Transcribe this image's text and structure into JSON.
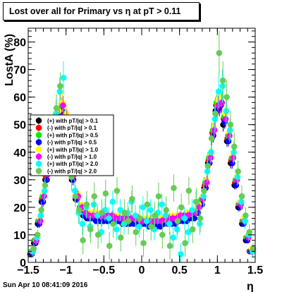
{
  "title": "Lost over all for Primary vs   η at pT > 0.11",
  "footer_timestamp": "Sun Apr 10 08:41:09 2016",
  "chart_data": {
    "type": "scatter",
    "title": "Lost over all for Primary vs   η at pT > 0.11",
    "xlabel": "η",
    "ylabel": "LostA (%)",
    "xlim": [
      -1.5,
      1.5
    ],
    "ylim": [
      0,
      85
    ],
    "x_ticks": [
      -1.5,
      -1,
      -0.5,
      0,
      0.5,
      1,
      1.5
    ],
    "x_tick_labels": [
      "−1.5",
      "−1",
      "−0.5",
      "0",
      "0.5",
      "1",
      "1.5"
    ],
    "y_ticks": [
      0,
      10,
      20,
      30,
      40,
      50,
      60,
      70,
      80
    ],
    "y_tick_labels": [
      "0",
      "10",
      "20",
      "30",
      "40",
      "50",
      "60",
      "70",
      "80"
    ],
    "grid": false,
    "legend_position": "left",
    "x": [
      -1.45,
      -1.4,
      -1.35,
      -1.3,
      -1.25,
      -1.2,
      -1.15,
      -1.1,
      -1.05,
      -1.0,
      -0.95,
      -0.9,
      -0.85,
      -0.8,
      -0.75,
      -0.7,
      -0.65,
      -0.6,
      -0.55,
      -0.5,
      -0.45,
      -0.4,
      -0.35,
      -0.3,
      -0.25,
      -0.2,
      -0.15,
      -0.1,
      -0.05,
      0.0,
      0.05,
      0.1,
      0.15,
      0.2,
      0.25,
      0.3,
      0.35,
      0.4,
      0.45,
      0.5,
      0.55,
      0.6,
      0.65,
      0.7,
      0.75,
      0.8,
      0.85,
      0.9,
      0.95,
      1.0,
      1.05,
      1.1,
      1.15,
      1.2,
      1.25,
      1.3,
      1.35,
      1.4,
      1.45
    ],
    "series": [
      {
        "name": "(+) with pT/|q| > 0.1",
        "color": "#000000",
        "values": [
          3,
          7,
          14,
          22,
          30,
          38,
          45,
          50,
          55,
          50,
          40,
          30,
          23,
          19,
          17,
          16,
          16,
          16,
          16,
          16,
          16,
          16,
          16,
          15,
          15,
          15,
          15,
          15,
          15,
          14,
          14,
          14,
          14,
          14,
          14,
          14,
          15,
          15,
          15,
          15,
          16,
          16,
          16,
          17,
          18,
          21,
          27,
          36,
          45,
          55,
          56,
          50,
          44,
          36,
          28,
          20,
          14,
          8,
          4
        ],
        "err": [
          1,
          1,
          1.5,
          2,
          2,
          2,
          2.5,
          2.5,
          3,
          3,
          2.5,
          2,
          1.5,
          1,
          1,
          1,
          1,
          1,
          1,
          1,
          1,
          1,
          1,
          1,
          1,
          1,
          1,
          1,
          1,
          1,
          1,
          1,
          1,
          1,
          1,
          1,
          1,
          1,
          1,
          1,
          1,
          1,
          1,
          1,
          1,
          1.5,
          2,
          2,
          2.5,
          3,
          3,
          2.5,
          2,
          2,
          1.5,
          1.5,
          1,
          1,
          1
        ]
      },
      {
        "name": "(-) with pT/|q| > 0.1",
        "color": "#ff0000",
        "values": [
          3,
          8,
          15,
          23,
          31,
          40,
          47,
          52,
          56,
          52,
          42,
          31,
          24,
          20,
          18,
          17,
          17,
          17,
          16,
          16,
          16,
          16,
          16,
          16,
          15,
          15,
          15,
          15,
          15,
          15,
          15,
          15,
          15,
          15,
          15,
          15,
          15,
          15,
          16,
          16,
          16,
          17,
          17,
          18,
          19,
          22,
          28,
          37,
          47,
          57,
          58,
          52,
          45,
          37,
          29,
          21,
          15,
          9,
          4
        ],
        "err": [
          1,
          1,
          1.5,
          2,
          2,
          2,
          2.5,
          2.5,
          3,
          3,
          2.5,
          2,
          1.5,
          1,
          1,
          1,
          1,
          1,
          1,
          1,
          1,
          1,
          1,
          1,
          1,
          1,
          1,
          1,
          1,
          1,
          1,
          1,
          1,
          1,
          1,
          1,
          1,
          1,
          1,
          1,
          1,
          1,
          1,
          1,
          1,
          1.5,
          2,
          2,
          2.5,
          3,
          3,
          2.5,
          2,
          2,
          1.5,
          1.5,
          1,
          1,
          1
        ]
      },
      {
        "name": "(+) with pT/|q| > 0.5",
        "color": "#00ee00",
        "values": [
          4,
          8,
          15,
          24,
          33,
          41,
          48,
          53,
          57,
          53,
          43,
          32,
          24,
          20,
          18,
          17,
          17,
          17,
          17,
          17,
          16,
          16,
          16,
          16,
          16,
          16,
          15,
          15,
          15,
          15,
          15,
          15,
          15,
          15,
          15,
          16,
          16,
          16,
          16,
          16,
          17,
          17,
          18,
          18,
          20,
          23,
          29,
          38,
          48,
          58,
          59,
          53,
          46,
          38,
          30,
          21,
          15,
          9,
          4
        ],
        "err": [
          1,
          1,
          1.5,
          2,
          2,
          2,
          2.5,
          2.5,
          3,
          3,
          2.5,
          2,
          1.5,
          1,
          1,
          1,
          1,
          1,
          1,
          1,
          1,
          1,
          1,
          1,
          1,
          1,
          1,
          1,
          1,
          1,
          1,
          1,
          1,
          1,
          1,
          1,
          1,
          1,
          1,
          1,
          1,
          1,
          1,
          1,
          1,
          1.5,
          2,
          2,
          2.5,
          3,
          3,
          2.5,
          2,
          2,
          1.5,
          1.5,
          1,
          1,
          1
        ]
      },
      {
        "name": "(-) with pT/|q| > 0.5",
        "color": "#0000ff",
        "values": [
          3,
          7,
          14,
          22,
          30,
          39,
          46,
          51,
          55,
          51,
          41,
          30,
          23,
          19,
          17,
          16,
          16,
          15,
          15,
          15,
          15,
          15,
          15,
          15,
          14,
          14,
          14,
          14,
          14,
          14,
          14,
          13,
          13,
          13,
          13,
          14,
          14,
          14,
          14,
          15,
          15,
          15,
          16,
          16,
          18,
          21,
          27,
          36,
          46,
          55,
          57,
          51,
          44,
          36,
          28,
          20,
          14,
          8,
          4
        ],
        "err": [
          1,
          1,
          1.5,
          2,
          2,
          2,
          2.5,
          2.5,
          3,
          3,
          2.5,
          2,
          1.5,
          1,
          1,
          1,
          1,
          1,
          1,
          1,
          1,
          1,
          1,
          1,
          1,
          1,
          1,
          1,
          1,
          1,
          1,
          1,
          1,
          1,
          1,
          1,
          1,
          1,
          1,
          1,
          1,
          1,
          1,
          1,
          1,
          1.5,
          2,
          2,
          2.5,
          3,
          3,
          2.5,
          2,
          2,
          1.5,
          1.5,
          1,
          1,
          1
        ]
      },
      {
        "name": "(+) with pT/|q| > 1.0",
        "color": "#ffff00",
        "values": [
          4,
          8,
          16,
          25,
          34,
          42,
          49,
          55,
          58,
          54,
          44,
          33,
          25,
          21,
          19,
          18,
          18,
          18,
          17,
          17,
          17,
          17,
          17,
          17,
          16,
          16,
          16,
          16,
          16,
          16,
          16,
          16,
          16,
          16,
          16,
          16,
          16,
          17,
          17,
          17,
          17,
          18,
          18,
          19,
          21,
          24,
          30,
          39,
          49,
          59,
          60,
          54,
          47,
          39,
          31,
          22,
          16,
          10,
          5
        ],
        "err": [
          1.5,
          1.5,
          2,
          2.5,
          2.5,
          2.5,
          3,
          3,
          3.5,
          3.5,
          3,
          2.5,
          2,
          1.5,
          1.5,
          1.5,
          1.5,
          1.5,
          1.5,
          1.5,
          1.5,
          1.5,
          1.5,
          1.5,
          1.5,
          1.5,
          1.5,
          1.5,
          1.5,
          1.5,
          1.5,
          1.5,
          1.5,
          1.5,
          1.5,
          1.5,
          1.5,
          1.5,
          1.5,
          1.5,
          1.5,
          1.5,
          1.5,
          1.5,
          1.5,
          2,
          2.5,
          2.5,
          3,
          3.5,
          3.5,
          3,
          2.5,
          2.5,
          2,
          2,
          1.5,
          1.5,
          1.5
        ]
      },
      {
        "name": "(-) with pT/|q| > 1.0",
        "color": "#ff00ff",
        "values": [
          4,
          8,
          15,
          24,
          32,
          41,
          48,
          53,
          57,
          52,
          42,
          32,
          24,
          20,
          18,
          17,
          17,
          17,
          17,
          17,
          17,
          17,
          16,
          16,
          16,
          16,
          16,
          16,
          16,
          15,
          15,
          15,
          15,
          15,
          15,
          16,
          16,
          16,
          16,
          17,
          17,
          17,
          18,
          18,
          20,
          23,
          29,
          38,
          48,
          57,
          58,
          52,
          46,
          38,
          30,
          21,
          15,
          9,
          4
        ],
        "err": [
          1.5,
          1.5,
          2,
          2.5,
          2.5,
          2.5,
          3,
          3,
          3.5,
          3.5,
          3,
          2.5,
          2,
          1.5,
          1.5,
          1.5,
          1.5,
          1.5,
          1.5,
          1.5,
          1.5,
          1.5,
          1.5,
          1.5,
          1.5,
          1.5,
          1.5,
          1.5,
          1.5,
          1.5,
          1.5,
          1.5,
          1.5,
          1.5,
          1.5,
          1.5,
          1.5,
          1.5,
          1.5,
          1.5,
          1.5,
          1.5,
          1.5,
          1.5,
          1.5,
          2,
          2.5,
          2.5,
          3,
          3.5,
          3.5,
          3,
          2.5,
          2.5,
          2,
          2,
          1.5,
          1.5,
          1.5
        ]
      },
      {
        "name": "(+) with pT/|q| > 2.0",
        "color": "#00ffff",
        "values": [
          4,
          9,
          17,
          26,
          36,
          45,
          54,
          62,
          67,
          48,
          36,
          26,
          18,
          14,
          20,
          13,
          21,
          17,
          11,
          19,
          16,
          22,
          12,
          19,
          14,
          18,
          22,
          17,
          13,
          20,
          15,
          19,
          12,
          18,
          21,
          17,
          14,
          9,
          12,
          3,
          16,
          11,
          19,
          22,
          14,
          24,
          33,
          40,
          52,
          62,
          64,
          55,
          48,
          40,
          31,
          22,
          15,
          10,
          4
        ],
        "err": [
          2,
          2,
          3,
          4,
          4,
          4,
          5,
          5,
          6,
          6,
          5,
          4,
          4,
          4,
          4,
          4,
          4,
          4,
          4,
          4,
          4,
          4,
          4,
          4,
          4,
          4,
          4,
          4,
          4,
          4,
          4,
          4,
          4,
          4,
          4,
          4,
          4,
          4,
          4,
          4,
          4,
          4,
          4,
          4,
          4,
          4,
          4,
          4,
          5,
          6,
          6,
          5,
          4,
          4,
          3,
          3,
          3,
          2,
          2
        ]
      },
      {
        "name": "(-) with pT/|q| > 2.0",
        "color": "#66cc55",
        "values": [
          5,
          10,
          19,
          28,
          38,
          47,
          56,
          64,
          50,
          40,
          31,
          24,
          19,
          8,
          21,
          12,
          24,
          10,
          18,
          25,
          6,
          14,
          26,
          9,
          18,
          15,
          23,
          11,
          16,
          7,
          21,
          13,
          17,
          24,
          10,
          19,
          6,
          27,
          15,
          20,
          7,
          26,
          12,
          22,
          16,
          26,
          35,
          45,
          54,
          76,
          66,
          60,
          50,
          42,
          33,
          24,
          17,
          11,
          5
        ],
        "err": [
          2,
          2,
          3,
          4,
          4,
          4,
          5,
          5,
          6,
          6,
          5,
          4,
          5,
          5,
          5,
          5,
          5,
          5,
          5,
          5,
          5,
          5,
          5,
          5,
          5,
          5,
          5,
          5,
          5,
          5,
          5,
          5,
          5,
          5,
          5,
          5,
          5,
          5,
          5,
          5,
          5,
          5,
          5,
          5,
          5,
          5,
          5,
          6,
          6,
          8,
          7,
          6,
          5,
          5,
          4,
          4,
          3,
          3,
          2
        ]
      }
    ]
  }
}
